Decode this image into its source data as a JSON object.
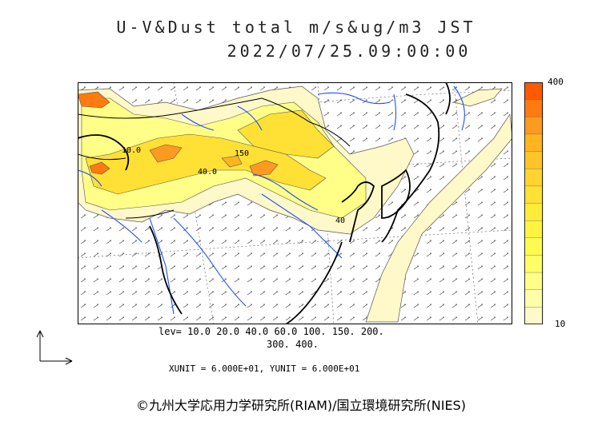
{
  "title": {
    "line1": "U-V&Dust total m/s&ug/m3 JST",
    "line2": "2022/07/25.09:00:00"
  },
  "legend": {
    "max_label": "400",
    "min_label": "10",
    "colors": [
      "#ff5a00",
      "#ff7a10",
      "#ff9a20",
      "#ffb420",
      "#ffc428",
      "#ffd430",
      "#ffe035",
      "#ffec38",
      "#fff440",
      "#fffa50",
      "#ffff66",
      "#ffff88",
      "#ffffaa",
      "#fff8c8"
    ]
  },
  "levels": {
    "line1": "lev= 10.0 20.0 40.0 60.0 100. 150. 200.",
    "line2": "300. 400."
  },
  "units": "XUNIT = 6.000E+01, YUNIT = 6.000E+01",
  "contour_labels": [
    "10.0",
    "150",
    "40.0",
    "40"
  ],
  "copyright": "©九州大学応用力学研究所(RIAM)/国立環境研究所(NIES)"
}
